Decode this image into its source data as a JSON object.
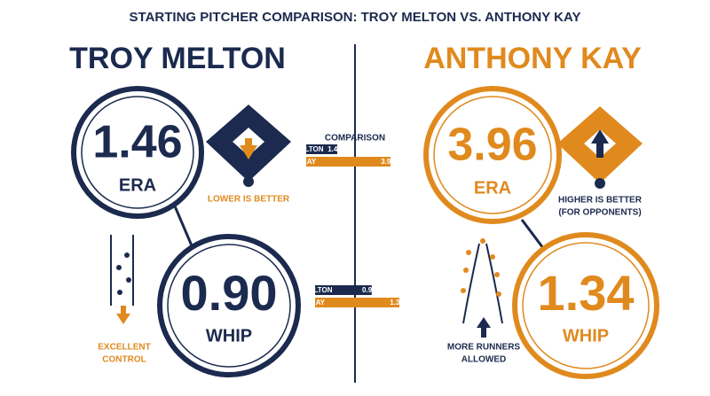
{
  "title": "STARTING PITCHER COMPARISON: TROY MELTON VS. ANTHONY KAY",
  "pitchers": [
    {
      "name": "TROY MELTON",
      "short_name": "MELTON",
      "color": "#1b2a4e",
      "era": 1.46,
      "era_label": "ERA",
      "era_note": [
        "LOWER IS BETTER"
      ],
      "whip": {
        "value": 0.9,
        "label": "0.90"
      },
      "whip_label": "WHIP",
      "whip_note": [
        "EXCELLENT",
        "CONTROL"
      ]
    },
    {
      "name": "ANTHONY KAY",
      "short_name": "KAY",
      "color": "#e08a1e",
      "era": 3.96,
      "era_label": "ERA",
      "era_note": [
        "HIGHER IS BETTER",
        "(FOR OPPONENTS)"
      ],
      "whip": 1.34,
      "whip_label": "WHIP",
      "whip_note": [
        "MORE RUNNERS",
        "ALLOWED"
      ]
    }
  ],
  "comparison_title": "COMPARISON"
}
